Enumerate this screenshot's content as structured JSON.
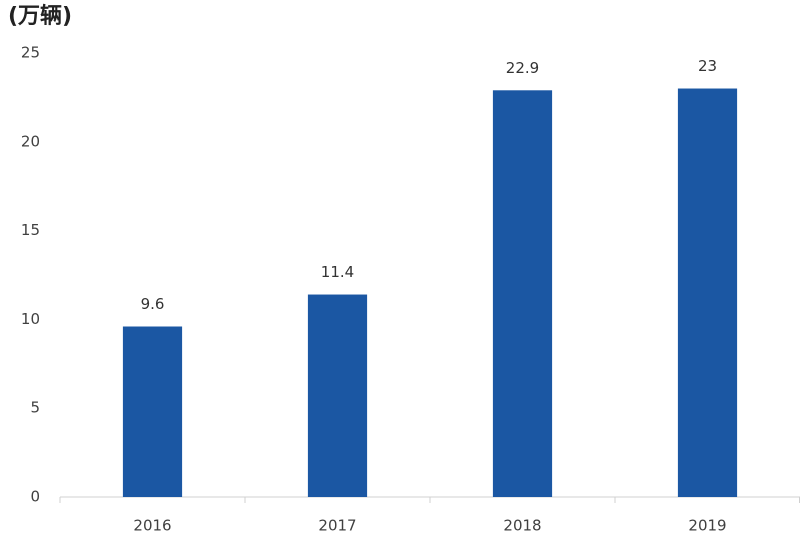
{
  "chart_data": {
    "type": "bar",
    "y_label": "(万辆)",
    "categories": [
      "2016",
      "2017",
      "2018",
      "2019"
    ],
    "values": [
      9.6,
      11.4,
      22.9,
      23
    ],
    "color": "#1b57a3",
    "ylim": [
      0,
      25
    ],
    "yticks": [
      0,
      5,
      10,
      15,
      20,
      25
    ],
    "grid": false
  }
}
